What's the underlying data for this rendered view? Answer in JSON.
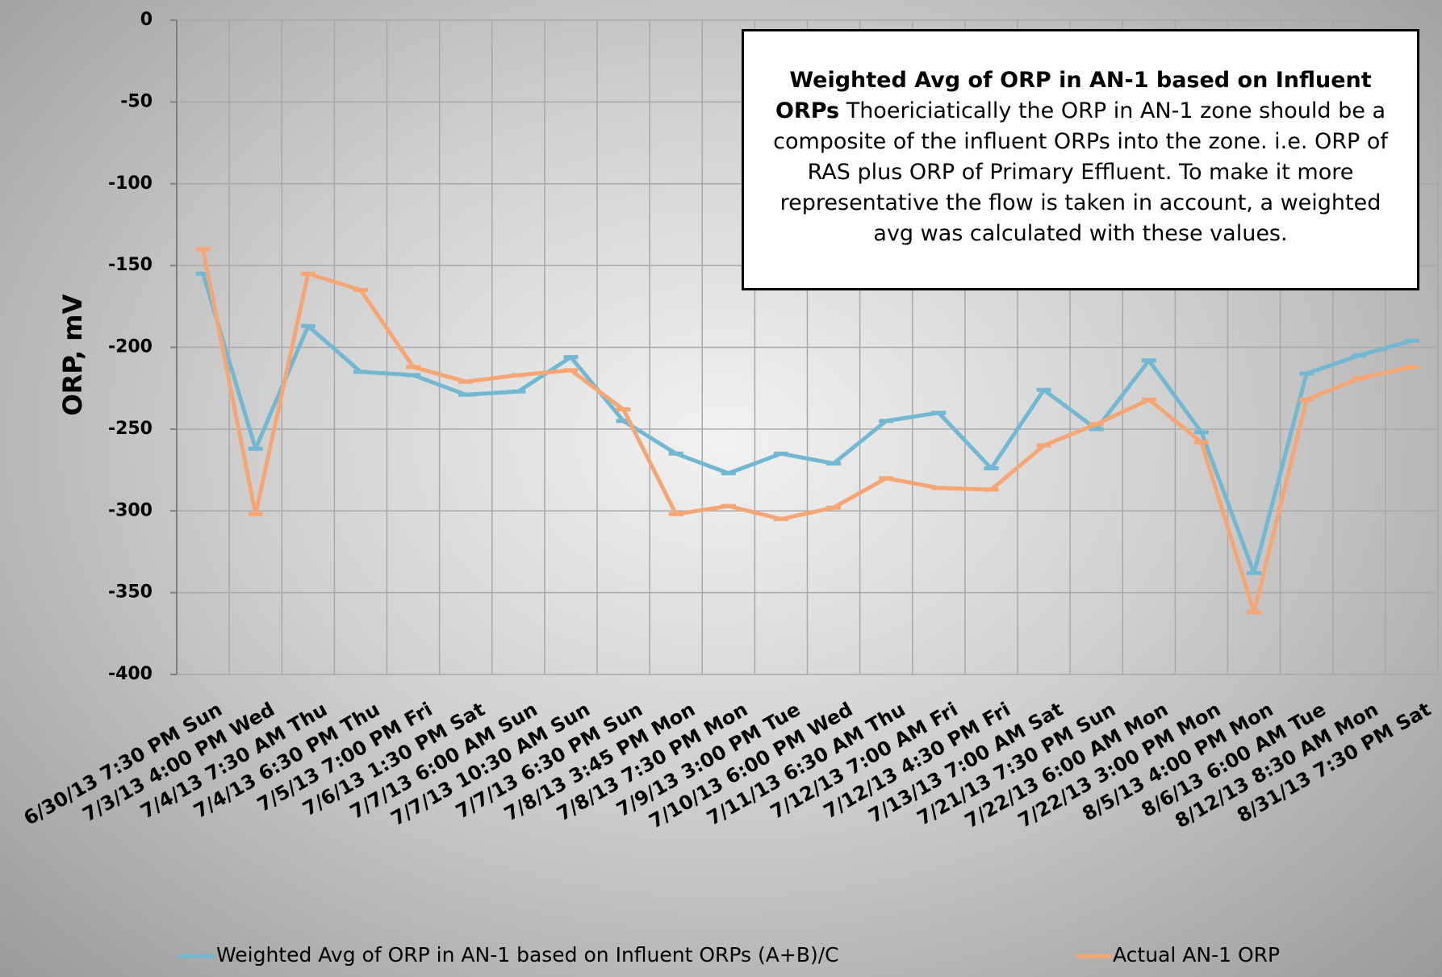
{
  "chart_data": {
    "type": "line",
    "ylabel": "ORP, mV",
    "categories": [
      "6/30/13 7:30 PM Sun",
      "7/3/13 4:00 PM Wed",
      "7/4/13 7:30 AM Thu",
      "7/4/13 6:30 PM Thu",
      "7/5/13 7:00 PM Fri",
      "7/6/13 1:30 PM Sat",
      "7/7/13 6:00 AM Sun",
      "7/7/13 10:30 AM Sun",
      "7/7/13 6:30 PM Sun",
      "7/8/13 3:45 PM Mon",
      "7/8/13 7:30 PM Mon",
      "7/9/13 3:00 PM Tue",
      "7/10/13 6:00 PM Wed",
      "7/11/13 6:30 AM Thu",
      "7/12/13 7:00 AM Fri",
      "7/12/13 4:30 PM Fri",
      "7/13/13 7:00 AM Sat",
      "7/21/13 7:30 PM Sun",
      "7/22/13 6:00 AM Mon",
      "7/22/13 3:00 PM Mon",
      "8/5/13 4:00 PM Mon",
      "8/6/13 6:00 AM Tue",
      "8/12/13 8:30 AM Mon",
      "8/31/13 7:30 PM Sat"
    ],
    "series": [
      {
        "name": "Weighted Avg of ORP in AN-1 based on Influent ORPs (A+B)/C",
        "color": "#72b8d2",
        "values": [
          -155,
          -262,
          -187,
          -215,
          -217,
          -229,
          -227,
          -206,
          -245,
          -265,
          -277,
          -265,
          -271,
          -245,
          -240,
          -274,
          -226,
          -250,
          -208,
          -252,
          -338,
          -216,
          -205,
          -196
        ]
      },
      {
        "name": "Actual AN-1 ORP",
        "color": "#f6a674",
        "values": [
          -140,
          -302,
          -155,
          -165,
          -212,
          -221,
          -217,
          -214,
          -238,
          -302,
          -297,
          -305,
          -298,
          -280,
          -286,
          -287,
          -260,
          -247,
          -232,
          -258,
          -362,
          -232,
          -219,
          -212
        ]
      }
    ],
    "ylim": [
      -400,
      0
    ],
    "yticks": [
      -400,
      -350,
      -300,
      -250,
      -200,
      -150,
      -100,
      -50,
      0
    ],
    "grid": true,
    "legend": "bottom",
    "annotation": {
      "title": "Weighted Avg of ORP in AN-1 based on Influent ORPs",
      "text": "Thoericiatically the ORP in AN-1 zone should be a composite of the influent ORPs into the zone.  i.e. ORP of RAS plus ORP of Primary Effluent.  To make it more representative the flow is taken in account, a weighted avg was calculated with these values."
    }
  }
}
